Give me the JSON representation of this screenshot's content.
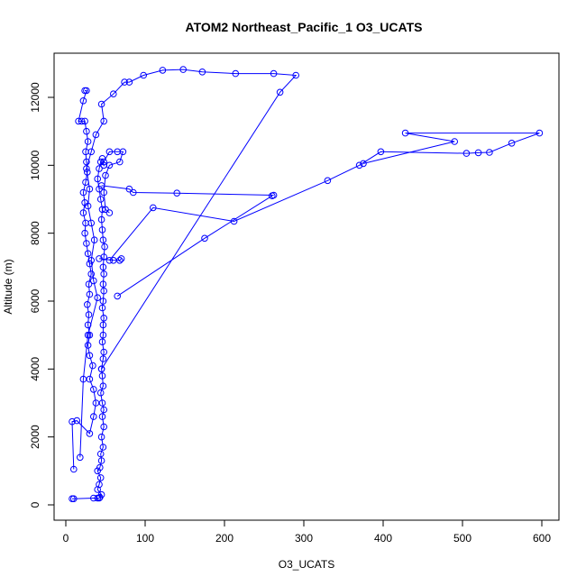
{
  "chart_data": {
    "type": "scatter",
    "title": "ATOM2 Northeast_Pacific_1 O3_UCATS",
    "xlabel": "O3_UCATS",
    "ylabel": "Altitude (m)",
    "xlim": [
      0,
      620
    ],
    "ylim": [
      -350,
      13300
    ],
    "xticks": [
      0,
      100,
      200,
      300,
      400,
      500,
      600
    ],
    "yticks": [
      0,
      2000,
      4000,
      6000,
      8000,
      10000,
      12000
    ],
    "grid": false,
    "point_style": "open circles joined by lines",
    "color": "#0000ff",
    "series": [
      {
        "values": [
          [
            8,
            180
          ],
          [
            10,
            180
          ],
          [
            35,
            200
          ],
          [
            40,
            200
          ],
          [
            42,
            200
          ],
          [
            43,
            220
          ],
          [
            45,
            300
          ],
          [
            40,
            450
          ],
          [
            42,
            600
          ],
          [
            44,
            800
          ],
          [
            40,
            1000
          ],
          [
            43,
            1100
          ],
          [
            45,
            1300
          ],
          [
            44,
            1500
          ],
          [
            47,
            1700
          ],
          [
            45,
            2000
          ],
          [
            48,
            2300
          ],
          [
            46,
            2600
          ],
          [
            48,
            2800
          ],
          [
            46,
            3000
          ],
          [
            44,
            3300
          ],
          [
            47,
            3500
          ],
          [
            46,
            3800
          ],
          [
            45,
            4000
          ],
          [
            47,
            4300
          ],
          [
            48,
            4500
          ],
          [
            46,
            4800
          ],
          [
            47,
            5000
          ],
          [
            47,
            5300
          ],
          [
            48,
            5500
          ],
          [
            46,
            5800
          ],
          [
            47,
            6000
          ],
          [
            48,
            6300
          ],
          [
            47,
            6500
          ],
          [
            48,
            6800
          ],
          [
            47,
            7000
          ],
          [
            48,
            7300
          ],
          [
            49,
            7600
          ],
          [
            47,
            7800
          ],
          [
            46,
            8100
          ],
          [
            45,
            8400
          ],
          [
            46,
            8700
          ],
          [
            44,
            9000
          ],
          [
            42,
            9300
          ],
          [
            40,
            9600
          ],
          [
            42,
            9900
          ],
          [
            44,
            10100
          ],
          [
            48,
            10000
          ],
          [
            46,
            10200
          ]
        ]
      },
      {
        "values": [
          [
            10,
            1050
          ],
          [
            8,
            2450
          ],
          [
            14,
            2480
          ],
          [
            30,
            2100
          ],
          [
            35,
            2600
          ],
          [
            38,
            3000
          ],
          [
            35,
            3400
          ],
          [
            30,
            3700
          ],
          [
            34,
            4100
          ],
          [
            30,
            4400
          ],
          [
            28,
            4700
          ],
          [
            30,
            5000
          ],
          [
            28,
            5300
          ],
          [
            29,
            5600
          ],
          [
            27,
            5900
          ],
          [
            30,
            6200
          ],
          [
            29,
            6500
          ],
          [
            32,
            6800
          ],
          [
            30,
            7100
          ],
          [
            28,
            7400
          ],
          [
            26,
            7700
          ],
          [
            24,
            8000
          ],
          [
            25,
            8300
          ],
          [
            22,
            8600
          ],
          [
            24,
            8900
          ],
          [
            22,
            9200
          ],
          [
            25,
            9500
          ],
          [
            27,
            9800
          ],
          [
            26,
            10100
          ],
          [
            25,
            10400
          ],
          [
            28,
            10700
          ],
          [
            26,
            11000
          ],
          [
            24,
            11300
          ],
          [
            20,
            11300
          ],
          [
            16,
            11300
          ],
          [
            22,
            11900
          ],
          [
            26,
            12200
          ],
          [
            24,
            12200
          ]
        ]
      },
      {
        "values": [
          [
            18,
            1400
          ],
          [
            22,
            3700
          ],
          [
            28,
            5000
          ],
          [
            40,
            6100
          ],
          [
            35,
            6600
          ],
          [
            32,
            7200
          ],
          [
            36,
            7800
          ],
          [
            32,
            8300
          ],
          [
            28,
            8800
          ],
          [
            30,
            9300
          ],
          [
            26,
            9900
          ],
          [
            32,
            10400
          ],
          [
            38,
            10900
          ],
          [
            48,
            11300
          ],
          [
            45,
            11800
          ],
          [
            60,
            12100
          ],
          [
            74,
            12450
          ],
          [
            80,
            12450
          ],
          [
            98,
            12650
          ],
          [
            122,
            12800
          ],
          [
            148,
            12820
          ],
          [
            172,
            12750
          ],
          [
            214,
            12700
          ],
          [
            262,
            12700
          ],
          [
            290,
            12650
          ],
          [
            270,
            12150
          ],
          [
            45,
            4000
          ]
        ]
      },
      {
        "values": [
          [
            45,
            9400
          ],
          [
            80,
            9300
          ],
          [
            85,
            9200
          ],
          [
            140,
            9180
          ],
          [
            262,
            9120
          ]
        ]
      },
      {
        "values": [
          [
            55,
            7200
          ],
          [
            110,
            8750
          ],
          [
            212,
            8350
          ],
          [
            330,
            9550
          ],
          [
            370,
            10000
          ],
          [
            397,
            10400
          ],
          [
            505,
            10350
          ],
          [
            520,
            10370
          ],
          [
            534,
            10380
          ],
          [
            562,
            10650
          ],
          [
            597,
            10950
          ],
          [
            428,
            10950
          ],
          [
            490,
            10700
          ],
          [
            375,
            10050
          ]
        ]
      },
      {
        "values": [
          [
            65,
            6150
          ],
          [
            175,
            7850
          ],
          [
            260,
            9100
          ]
        ]
      },
      {
        "values": [
          [
            48,
            10100
          ],
          [
            55,
            10400
          ],
          [
            65,
            10400
          ],
          [
            72,
            10400
          ],
          [
            68,
            10100
          ],
          [
            55,
            10000
          ],
          [
            50,
            9700
          ],
          [
            48,
            9200
          ],
          [
            50,
            8700
          ],
          [
            55,
            8600
          ]
        ]
      },
      {
        "values": [
          [
            42,
            7250
          ],
          [
            60,
            7200
          ],
          [
            68,
            7200
          ],
          [
            70,
            7250
          ]
        ]
      }
    ]
  }
}
